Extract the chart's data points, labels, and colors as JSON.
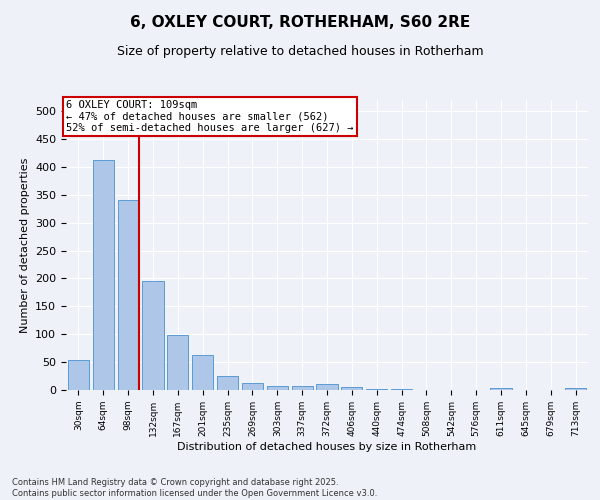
{
  "title": "6, OXLEY COURT, ROTHERHAM, S60 2RE",
  "subtitle": "Size of property relative to detached houses in Rotherham",
  "xlabel": "Distribution of detached houses by size in Rotherham",
  "ylabel": "Number of detached properties",
  "categories": [
    "30sqm",
    "64sqm",
    "98sqm",
    "132sqm",
    "167sqm",
    "201sqm",
    "235sqm",
    "269sqm",
    "303sqm",
    "337sqm",
    "372sqm",
    "406sqm",
    "440sqm",
    "474sqm",
    "508sqm",
    "542sqm",
    "576sqm",
    "611sqm",
    "645sqm",
    "679sqm",
    "713sqm"
  ],
  "values": [
    53,
    413,
    340,
    195,
    98,
    63,
    25,
    13,
    8,
    8,
    10,
    5,
    2,
    2,
    0,
    0,
    0,
    3,
    0,
    0,
    3
  ],
  "bar_color": "#aec6e8",
  "bar_edge_color": "#5b9bd5",
  "bar_width": 0.85,
  "vline_color": "#cc0000",
  "annotation_line1": "6 OXLEY COURT: 109sqm",
  "annotation_line2": "← 47% of detached houses are smaller (562)",
  "annotation_line3": "52% of semi-detached houses are larger (627) →",
  "annotation_box_color": "#cc0000",
  "ylim": [
    0,
    520
  ],
  "yticks": [
    0,
    50,
    100,
    150,
    200,
    250,
    300,
    350,
    400,
    450,
    500
  ],
  "bg_color": "#eef2f8",
  "footer1": "Contains HM Land Registry data © Crown copyright and database right 2025.",
  "footer2": "Contains public sector information licensed under the Open Government Licence v3.0."
}
